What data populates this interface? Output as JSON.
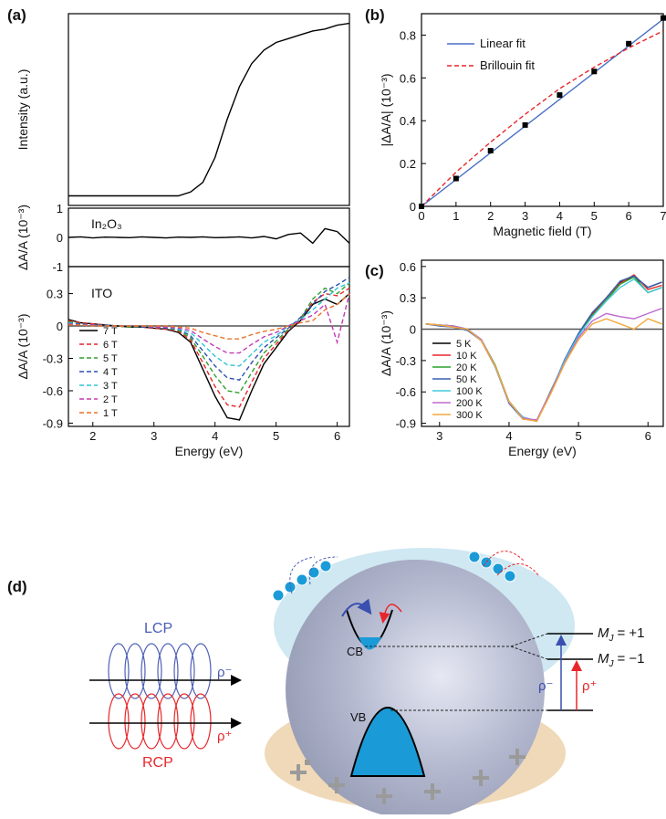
{
  "chart_data": [
    {
      "type": "line",
      "label": "(a)",
      "ylabel": "Intensity (a.u.)",
      "x": [
        1.6,
        1.8,
        2.0,
        2.2,
        2.4,
        2.6,
        2.8,
        3.0,
        3.2,
        3.4,
        3.6,
        3.8,
        4.0,
        4.2,
        4.4,
        4.6,
        4.8,
        5.0,
        5.2,
        5.4,
        5.6,
        5.8,
        6.0,
        6.2
      ],
      "series": [
        {
          "color": "#000000",
          "values": [
            0.05,
            0.05,
            0.05,
            0.05,
            0.05,
            0.05,
            0.05,
            0.05,
            0.05,
            0.05,
            0.07,
            0.12,
            0.25,
            0.45,
            0.62,
            0.74,
            0.81,
            0.85,
            0.87,
            0.89,
            0.91,
            0.92,
            0.94,
            0.95
          ]
        }
      ],
      "xlim": [
        1.6,
        6.2
      ],
      "ylim": [
        0,
        1
      ]
    },
    {
      "type": "line",
      "ylabel": "ΔA/A (10⁻³)",
      "annotation": "In₂O₃",
      "x": [
        1.6,
        1.8,
        2.0,
        2.2,
        2.4,
        2.6,
        2.8,
        3.0,
        3.2,
        3.4,
        3.6,
        3.8,
        4.0,
        4.2,
        4.4,
        4.6,
        4.8,
        5.0,
        5.2,
        5.4,
        5.6,
        5.8,
        6.0,
        6.2
      ],
      "series": [
        {
          "color": "#000000",
          "values": [
            0,
            0.02,
            -0.02,
            0.01,
            0,
            -0.01,
            0.02,
            0,
            -0.02,
            0.01,
            0,
            0.02,
            -0.01,
            0,
            0.02,
            -0.02,
            0.03,
            -0.05,
            0.1,
            0.15,
            -0.2,
            0.3,
            0.2,
            -0.2
          ]
        }
      ],
      "xlim": [
        1.6,
        6.2
      ],
      "ylim": [
        -1,
        1
      ],
      "yticks": [
        1,
        0,
        -1
      ]
    },
    {
      "type": "line",
      "ylabel": "ΔA/A (10⁻³)",
      "xlabel": "Energy (eV)",
      "annotation": "ITO",
      "x": [
        1.6,
        1.8,
        2.0,
        2.2,
        2.4,
        2.6,
        2.8,
        3.0,
        3.2,
        3.4,
        3.6,
        3.8,
        4.0,
        4.2,
        4.4,
        4.6,
        4.8,
        5.0,
        5.2,
        5.4,
        5.6,
        5.8,
        6.0,
        6.2
      ],
      "series": [
        {
          "name": "7 T",
          "color": "#000000",
          "dashed": false,
          "values": [
            0.06,
            0.03,
            0.02,
            0.01,
            0,
            -0.01,
            -0.01,
            -0.02,
            -0.03,
            -0.06,
            -0.15,
            -0.4,
            -0.65,
            -0.85,
            -0.87,
            -0.6,
            -0.35,
            -0.2,
            -0.05,
            0.05,
            0.2,
            0.25,
            0.2,
            0.3
          ]
        },
        {
          "name": "6 T",
          "color": "#e8262a",
          "dashed": true,
          "values": [
            0.05,
            0.03,
            0.02,
            0.01,
            0,
            -0.01,
            -0.01,
            -0.02,
            -0.03,
            -0.05,
            -0.13,
            -0.34,
            -0.56,
            -0.73,
            -0.75,
            -0.52,
            -0.3,
            -0.17,
            -0.04,
            0.06,
            0.22,
            0.3,
            0.28,
            0.35
          ]
        },
        {
          "name": "5 T",
          "color": "#2ca02c",
          "dashed": true,
          "values": [
            0.04,
            0.02,
            0.01,
            0.01,
            0,
            -0.01,
            -0.01,
            -0.01,
            -0.02,
            -0.04,
            -0.11,
            -0.28,
            -0.46,
            -0.6,
            -0.62,
            -0.43,
            -0.25,
            -0.14,
            -0.03,
            0.07,
            0.25,
            0.35,
            0.3,
            0.4
          ]
        },
        {
          "name": "4 T",
          "color": "#2f4fb0",
          "dashed": true,
          "values": [
            0.03,
            0.02,
            0.01,
            0.01,
            0,
            0,
            -0.01,
            -0.01,
            -0.02,
            -0.03,
            -0.09,
            -0.23,
            -0.37,
            -0.48,
            -0.5,
            -0.34,
            -0.2,
            -0.11,
            -0.02,
            0.08,
            0.2,
            0.32,
            0.38,
            0.45
          ]
        },
        {
          "name": "3 T",
          "color": "#2ec4d6",
          "dashed": true,
          "values": [
            0.03,
            0.01,
            0.01,
            0,
            0,
            0,
            0,
            -0.01,
            -0.01,
            -0.03,
            -0.06,
            -0.17,
            -0.28,
            -0.36,
            -0.37,
            -0.26,
            -0.15,
            -0.09,
            0,
            0.06,
            0.15,
            0.25,
            0.35,
            0.4
          ]
        },
        {
          "name": "2 T",
          "color": "#c23bb5",
          "dashed": true,
          "values": [
            0.02,
            0.01,
            0.01,
            0,
            0,
            0,
            0,
            -0.01,
            -0.01,
            -0.02,
            -0.04,
            -0.12,
            -0.19,
            -0.25,
            -0.25,
            -0.17,
            -0.1,
            -0.06,
            0,
            0.05,
            0.1,
            0.2,
            -0.15,
            0.3
          ]
        },
        {
          "name": "1 T",
          "color": "#e8742a",
          "dashed": true,
          "values": [
            0.01,
            0.01,
            0,
            0,
            0,
            0,
            0,
            0,
            0,
            -0.01,
            -0.02,
            -0.06,
            -0.09,
            -0.12,
            -0.12,
            -0.08,
            -0.05,
            -0.03,
            0,
            0.03,
            0.05,
            0.15,
            0.2,
            0.3
          ]
        }
      ],
      "xlim": [
        1.6,
        6.2
      ],
      "ylim": [
        -0.93,
        0.55
      ],
      "xticks": [
        2,
        3,
        4,
        5,
        6
      ],
      "yticks": [
        0.3,
        0,
        -0.3,
        -0.6,
        -0.9
      ],
      "zero_line": true,
      "legend": "lower left"
    },
    {
      "type": "scatter",
      "label": "(b)",
      "ylabel": "|ΔA/A| (10⁻³)",
      "xlabel": "Magnetic field (T)",
      "points": {
        "color": "#000000",
        "x": [
          0,
          1,
          2,
          3,
          4,
          5,
          6,
          7
        ],
        "values": [
          0,
          0.13,
          0.26,
          0.38,
          0.52,
          0.63,
          0.76,
          0.88
        ]
      },
      "series": [
        {
          "name": "Linear fit",
          "color": "#4a6fc4",
          "dashed": false,
          "x": [
            0,
            7
          ],
          "values": [
            0,
            0.875
          ]
        },
        {
          "name": "Brillouin fit",
          "color": "#e8262a",
          "dashed": true,
          "x": [
            0,
            1,
            2,
            3,
            4,
            5,
            6,
            7
          ],
          "values": [
            0,
            0.16,
            0.3,
            0.43,
            0.55,
            0.65,
            0.74,
            0.82
          ]
        }
      ],
      "xlim": [
        0,
        7
      ],
      "ylim": [
        0,
        0.9
      ],
      "xticks": [
        0,
        1,
        2,
        3,
        4,
        5,
        6,
        7
      ],
      "yticks": [
        0,
        0.2,
        0.4,
        0.6,
        0.8
      ],
      "legend": "upper left"
    },
    {
      "type": "line",
      "label": "(c)",
      "ylabel": "ΔA/A (10⁻³)",
      "xlabel": "Energy (eV)",
      "x": [
        2.8,
        3.0,
        3.2,
        3.4,
        3.6,
        3.8,
        4.0,
        4.2,
        4.4,
        4.6,
        4.8,
        5.0,
        5.2,
        5.4,
        5.6,
        5.8,
        6.0,
        6.2
      ],
      "series": [
        {
          "name": "5 K",
          "color": "#000000",
          "values": [
            0.05,
            0.04,
            0.03,
            0.0,
            -0.1,
            -0.35,
            -0.7,
            -0.85,
            -0.88,
            -0.6,
            -0.3,
            -0.05,
            0.15,
            0.3,
            0.45,
            0.5,
            0.4,
            0.45
          ]
        },
        {
          "name": "10 K",
          "color": "#e8262a",
          "values": [
            0.05,
            0.04,
            0.03,
            0.0,
            -0.11,
            -0.36,
            -0.7,
            -0.86,
            -0.87,
            -0.6,
            -0.3,
            -0.06,
            0.14,
            0.3,
            0.44,
            0.52,
            0.38,
            0.42
          ]
        },
        {
          "name": "20 K",
          "color": "#2ca02c",
          "values": [
            0.05,
            0.04,
            0.02,
            -0.01,
            -0.1,
            -0.34,
            -0.69,
            -0.85,
            -0.88,
            -0.59,
            -0.31,
            -0.05,
            0.13,
            0.28,
            0.43,
            0.5,
            0.35,
            0.4
          ]
        },
        {
          "name": "50 K",
          "color": "#3a5fb0",
          "values": [
            0.05,
            0.03,
            0.02,
            -0.01,
            -0.11,
            -0.35,
            -0.71,
            -0.86,
            -0.87,
            -0.61,
            -0.29,
            -0.04,
            0.16,
            0.3,
            0.46,
            0.51,
            0.4,
            0.45
          ]
        },
        {
          "name": "100 K",
          "color": "#44c8dc",
          "values": [
            0.05,
            0.04,
            0.03,
            0,
            -0.1,
            -0.36,
            -0.7,
            -0.84,
            -0.88,
            -0.6,
            -0.3,
            -0.06,
            0.12,
            0.27,
            0.4,
            0.48,
            0.35,
            0.4
          ]
        },
        {
          "name": "200 K",
          "color": "#c06ad0",
          "values": [
            0.05,
            0.04,
            0.03,
            0,
            -0.1,
            -0.35,
            -0.7,
            -0.85,
            -0.87,
            -0.6,
            -0.32,
            -0.08,
            0.08,
            0.15,
            0.12,
            0.1,
            0.15,
            0.2
          ]
        },
        {
          "name": "300 K",
          "color": "#f2a93b",
          "values": [
            0.05,
            0.04,
            0.02,
            0,
            -0.11,
            -0.35,
            -0.69,
            -0.86,
            -0.88,
            -0.62,
            -0.33,
            -0.1,
            0.05,
            0.1,
            0.05,
            0.0,
            0.1,
            0.05
          ]
        }
      ],
      "xlim": [
        2.74,
        6.22
      ],
      "ylim": [
        -0.93,
        0.66
      ],
      "xticks": [
        3,
        4,
        5,
        6
      ],
      "yticks": [
        0.6,
        0.3,
        0,
        -0.3,
        -0.6,
        -0.9
      ],
      "zero_line": true,
      "legend": "lower left"
    }
  ],
  "diagram": {
    "label": "(d)",
    "lcp": "LCP",
    "rcp": "RCP",
    "rho_minus": "ρ⁻",
    "rho_plus": "ρ⁺",
    "cb": "CB",
    "vb": "VB",
    "levels": [
      {
        "symbol": "M",
        "subscript": "J",
        "text": "= +1"
      },
      {
        "symbol": "M",
        "subscript": "J",
        "text": "= −1"
      }
    ],
    "transition_minus": "ρ⁻",
    "transition_plus": "ρ⁺"
  }
}
